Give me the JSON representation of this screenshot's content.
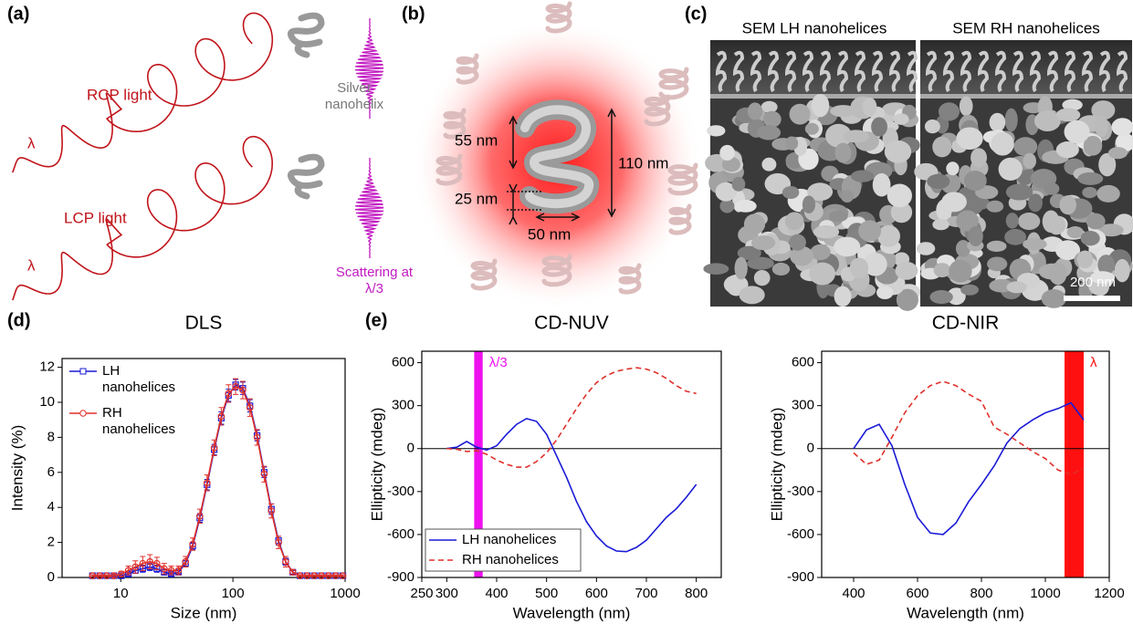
{
  "panel_labels": [
    "(a)",
    "(b)",
    "(c)",
    "(d)",
    "(e)"
  ],
  "illustration_a": {
    "lambda_top": "λ",
    "rcp": "RCP light",
    "lambda_bottom": "λ",
    "lcp": "LCP light",
    "helix": "Silver nanohelix",
    "scattering": "Scattering at λ/3"
  },
  "illustration_b": {
    "pitch": "55 nm",
    "length": "110 nm",
    "wire": "25 nm",
    "diameter": "50 nm"
  },
  "sem_c": {
    "titles": [
      "SEM LH nanohelices",
      "SEM RH nanohelices"
    ],
    "scale_bar": "200 nm"
  },
  "chart_data": [
    {
      "type": "line",
      "title": "DLS",
      "x_label": "Size (nm)",
      "y_label": "Intensity (%)",
      "xscale": "log",
      "xlim": [
        3,
        1000
      ],
      "xticks": [
        10,
        100,
        1000
      ],
      "ylim": [
        0,
        12.5
      ],
      "yticks": [
        0,
        2,
        4,
        6,
        8,
        10,
        12
      ],
      "legend": "upper left",
      "x": [
        5.6,
        6.5,
        7.5,
        8.7,
        10.1,
        11.7,
        13.5,
        15.7,
        18.2,
        21,
        24.4,
        28.2,
        32.7,
        37.8,
        43.8,
        50.7,
        58.8,
        68.1,
        78.8,
        91.3,
        105.7,
        122.4,
        141.8,
        164.2,
        190.1,
        220.2,
        255,
        295.3,
        342,
        396.1,
        458.7,
        531.2,
        615.1,
        712.4,
        825,
        955.4
      ],
      "series": [
        {
          "name": "LH nanohelices",
          "color": "#1a1ad6",
          "marker": "square",
          "line_style": "solid",
          "values": [
            0.1,
            0.1,
            0.1,
            0.1,
            0.1,
            0.2,
            0.4,
            0.5,
            0.6,
            0.5,
            0.3,
            0.2,
            0.3,
            0.8,
            1.8,
            3.4,
            5.3,
            7.3,
            9.1,
            10.4,
            11.0,
            10.8,
            9.8,
            8.1,
            6.0,
            3.9,
            2.1,
            0.9,
            0.3,
            0.1,
            0.1,
            0.1,
            0.1,
            0.1,
            0.1,
            0.1
          ],
          "errors": [
            0.05,
            0.05,
            0.05,
            0.05,
            0.05,
            0.1,
            0.15,
            0.2,
            0.2,
            0.2,
            0.15,
            0.1,
            0.1,
            0.15,
            0.2,
            0.25,
            0.3,
            0.3,
            0.35,
            0.35,
            0.3,
            0.35,
            0.35,
            0.3,
            0.3,
            0.3,
            0.25,
            0.2,
            0.1,
            0.05,
            0.05,
            0.05,
            0.05,
            0.05,
            0.05,
            0.05
          ]
        },
        {
          "name": "RH nanohelices",
          "color": "#e0302a",
          "marker": "circle",
          "line_style": "solid",
          "values": [
            0.1,
            0.1,
            0.1,
            0.1,
            0.2,
            0.4,
            0.6,
            0.8,
            0.9,
            0.8,
            0.5,
            0.4,
            0.4,
            0.9,
            1.9,
            3.5,
            5.4,
            7.4,
            9.2,
            10.5,
            10.9,
            10.7,
            9.7,
            8.0,
            5.9,
            3.8,
            2.0,
            0.9,
            0.3,
            0.1,
            0.1,
            0.1,
            0.1,
            0.1,
            0.1,
            0.1
          ],
          "errors": [
            0.05,
            0.05,
            0.05,
            0.1,
            0.15,
            0.25,
            0.35,
            0.4,
            0.4,
            0.35,
            0.3,
            0.25,
            0.25,
            0.3,
            0.35,
            0.4,
            0.45,
            0.45,
            0.5,
            0.5,
            0.45,
            0.5,
            0.5,
            0.45,
            0.45,
            0.4,
            0.35,
            0.3,
            0.15,
            0.05,
            0.05,
            0.05,
            0.05,
            0.05,
            0.05,
            0.05
          ]
        }
      ]
    },
    {
      "type": "line",
      "title": "CD-NUV",
      "x_label": "Wavelength (nm)",
      "y_label": "Ellipticity (mdeg)",
      "xlim": [
        250,
        850
      ],
      "xticks": [
        250,
        300,
        400,
        500,
        600,
        700,
        800
      ],
      "ylim": [
        -900,
        680
      ],
      "yticks": [
        -900,
        -600,
        -300,
        0,
        300,
        600
      ],
      "hline": 0,
      "legend": "lower left",
      "bands": [
        {
          "xmin": 355,
          "xmax": 372,
          "color": "#ee11ee",
          "label": "λ/3"
        }
      ],
      "x": [
        300,
        320,
        340,
        360,
        380,
        400,
        420,
        440,
        460,
        480,
        500,
        520,
        540,
        560,
        580,
        600,
        620,
        640,
        660,
        680,
        700,
        720,
        740,
        760,
        780,
        800
      ],
      "series": [
        {
          "name": "LH nanohelices",
          "color": "#1a1ad6",
          "line_style": "solid",
          "values": [
            0,
            10,
            50,
            10,
            -10,
            20,
            100,
            170,
            210,
            190,
            100,
            -50,
            -200,
            -370,
            -510,
            -610,
            -680,
            -715,
            -720,
            -690,
            -640,
            -560,
            -480,
            -420,
            -340,
            -250
          ]
        },
        {
          "name": "RH nanohelices",
          "color": "#e0302a",
          "line_style": "dashed",
          "values": [
            0,
            -5,
            -20,
            -15,
            -40,
            -80,
            -110,
            -130,
            -130,
            -90,
            -30,
            60,
            170,
            280,
            380,
            460,
            510,
            540,
            555,
            565,
            555,
            530,
            490,
            440,
            400,
            385
          ]
        }
      ]
    },
    {
      "type": "line",
      "title": "CD-NIR",
      "x_label": "Wavelength (nm)",
      "y_label": "Ellipticity (mdeg)",
      "xlim": [
        300,
        1200
      ],
      "xticks": [
        400,
        600,
        800,
        1000,
        1200
      ],
      "ylim": [
        -900,
        680
      ],
      "yticks": [
        -900,
        -600,
        -300,
        0,
        300,
        600
      ],
      "hline": 0,
      "bands": [
        {
          "xmin": 1060,
          "xmax": 1120,
          "color": "#ff1010",
          "label": "λ"
        }
      ],
      "x": [
        400,
        440,
        480,
        520,
        560,
        600,
        640,
        680,
        720,
        760,
        800,
        840,
        880,
        920,
        960,
        1000,
        1040,
        1080,
        1120
      ],
      "series": [
        {
          "name": "LH nanohelices",
          "color": "#1a1ad6",
          "line_style": "solid",
          "values": [
            0,
            130,
            170,
            20,
            -250,
            -480,
            -590,
            -600,
            -520,
            -370,
            -250,
            -120,
            40,
            140,
            200,
            250,
            280,
            320,
            200
          ]
        },
        {
          "name": "RH nanohelices",
          "color": "#e0302a",
          "line_style": "dashed",
          "values": [
            -30,
            -110,
            -80,
            80,
            250,
            370,
            440,
            470,
            440,
            380,
            330,
            150,
            100,
            40,
            -20,
            -70,
            -150,
            -180,
            -140
          ]
        }
      ]
    }
  ]
}
